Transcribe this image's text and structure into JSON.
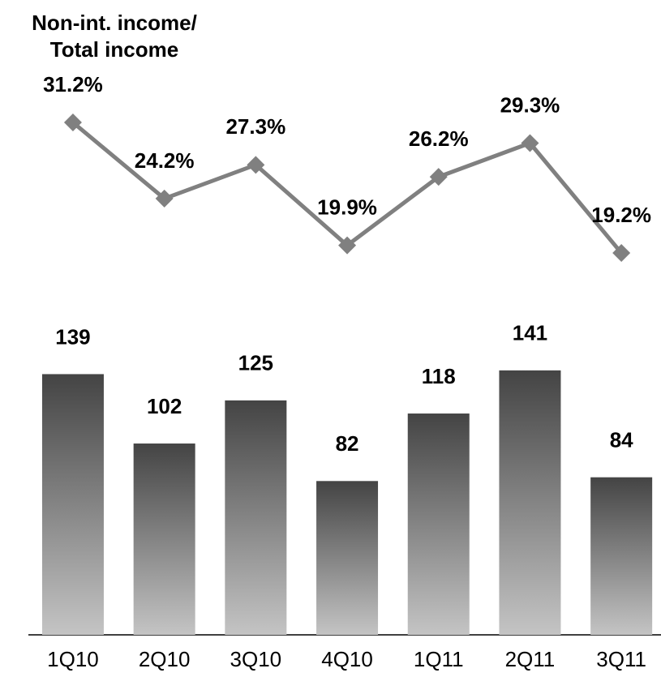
{
  "chart_data": {
    "type": "bar",
    "title": "Non-int. income/ Total income",
    "categories": [
      "1Q10",
      "2Q10",
      "3Q10",
      "4Q10",
      "1Q11",
      "2Q11",
      "3Q11"
    ],
    "ylim": [
      0,
      150
    ],
    "y2lim": [
      15,
      35
    ],
    "series": [
      {
        "type": "bar",
        "color": [
          "#444444",
          "#c4c4c4"
        ],
        "values": [
          139,
          102,
          125,
          82,
          118,
          141,
          84
        ]
      },
      {
        "type": "line",
        "axis": "y2",
        "color": "#808080",
        "values": [
          31.2,
          24.2,
          27.3,
          19.9,
          26.2,
          29.3,
          19.2
        ],
        "value_labels": [
          "31.2%",
          "24.2%",
          "27.3%",
          "19.9%",
          "26.2%",
          "29.3%",
          "19.2%"
        ]
      }
    ]
  }
}
